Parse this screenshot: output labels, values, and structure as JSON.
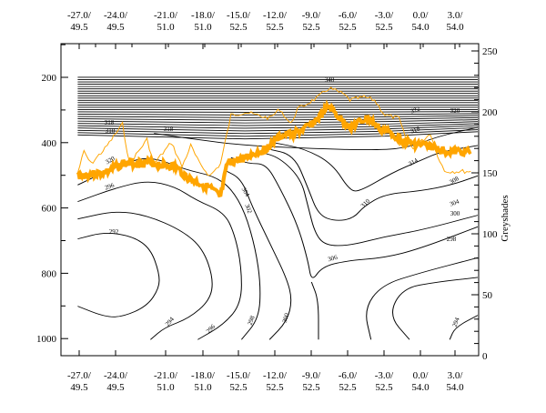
{
  "chart_data": {
    "type": "contour",
    "title": "",
    "x_ticks": [
      {
        "top": "-27.0/",
        "bottom": "49.5"
      },
      {
        "top": "-24.0/",
        "bottom": "49.5"
      },
      {
        "top": "-21.0/",
        "bottom": "51.0"
      },
      {
        "top": "-18.0/",
        "bottom": "51.0"
      },
      {
        "top": "-15.0/",
        "bottom": "52.5"
      },
      {
        "top": "-12.0/",
        "bottom": "52.5"
      },
      {
        "top": "-9.0/",
        "bottom": "52.5"
      },
      {
        "top": "-6.0/",
        "bottom": "52.5"
      },
      {
        "top": "-3.0/",
        "bottom": "52.5"
      },
      {
        "top": "0.0/",
        "bottom": "54.0"
      },
      {
        "top": "3.0/",
        "bottom": "54.0"
      }
    ],
    "left_axis": {
      "label": "",
      "ticks": [
        "200",
        "400",
        "600",
        "800",
        "1000"
      ],
      "values": [
        200,
        400,
        600,
        800,
        1000
      ],
      "range": [
        97,
        1052
      ],
      "inverted": true
    },
    "right_axis": {
      "label": "Greyshades",
      "ticks": [
        "0",
        "50",
        "100",
        "150",
        "200",
        "250"
      ],
      "values": [
        0,
        50,
        100,
        150,
        200,
        250
      ],
      "range": [
        0,
        250
      ]
    },
    "contour_labels": [
      "292",
      "294",
      "296",
      "298",
      "300",
      "302",
      "304",
      "306",
      "308",
      "310",
      "314",
      "318",
      "320",
      "322",
      "340"
    ],
    "series": [
      {
        "name": "greyshade-mean",
        "color": "#FFA500",
        "style": "thick"
      },
      {
        "name": "greyshade-max",
        "color": "#FFA500",
        "style": "thin"
      }
    ]
  }
}
